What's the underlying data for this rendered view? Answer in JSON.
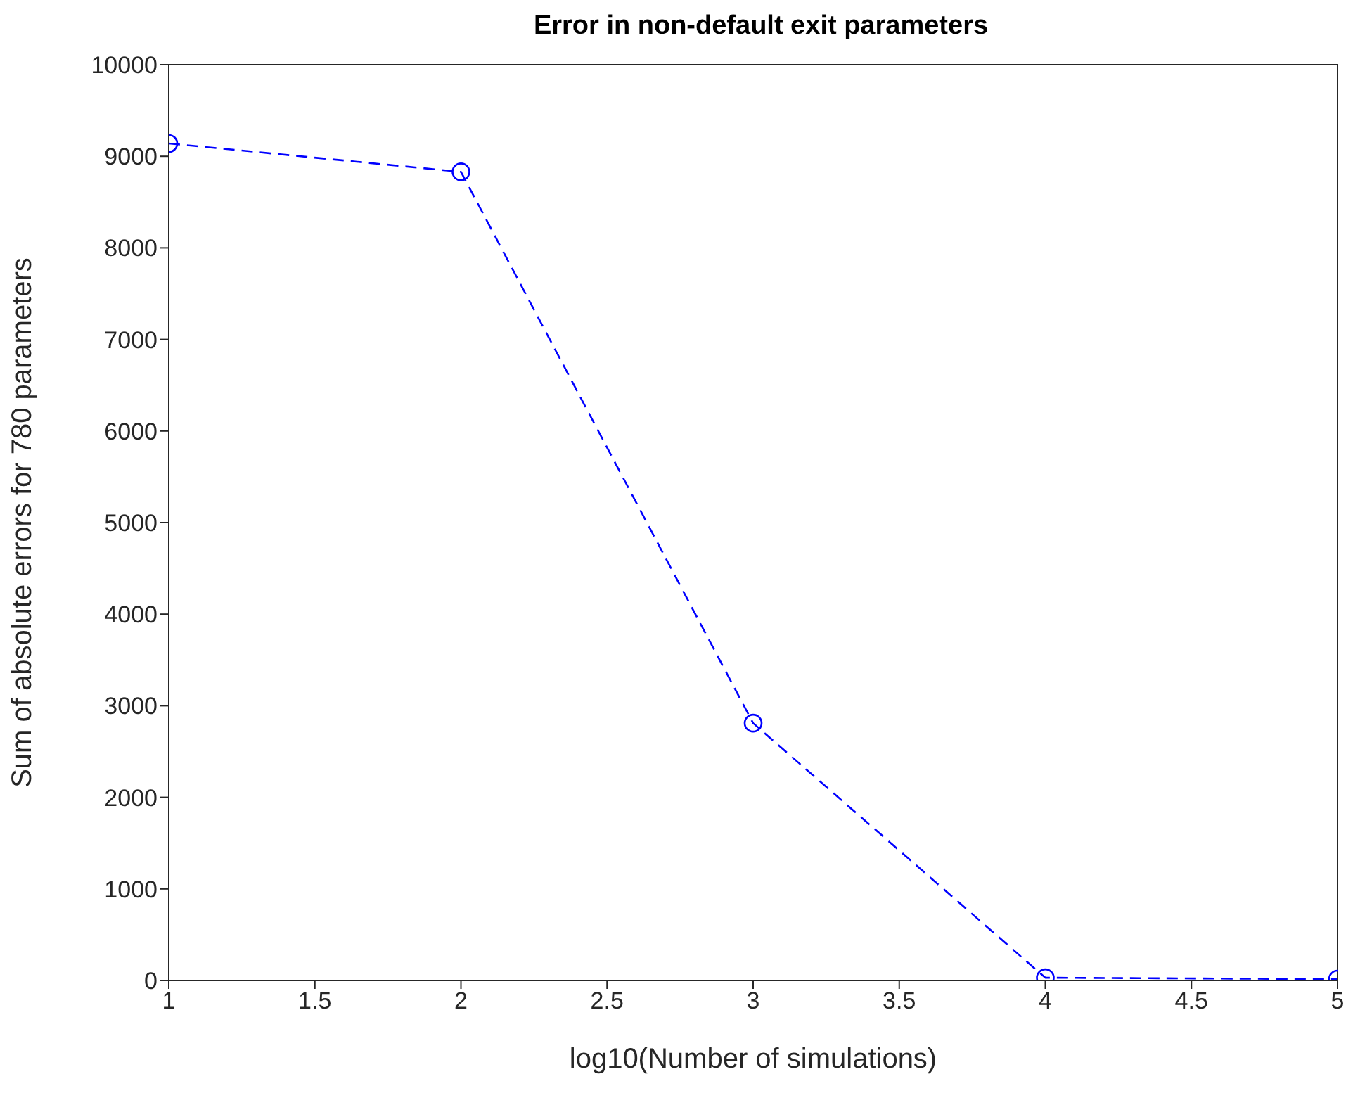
{
  "chart_data": {
    "type": "line",
    "title": "Error in non-default exit parameters",
    "xlabel": "log10(Number of simulations)",
    "ylabel": "Sum of absolute errors for 780 parameters",
    "x": [
      1,
      2,
      3,
      4,
      5
    ],
    "series": [
      {
        "color": "#0000ff",
        "values": [
          9140,
          8830,
          2810,
          30,
          15
        ]
      }
    ],
    "xlim": [
      1,
      5
    ],
    "xticks": [
      1,
      1.5,
      2,
      2.5,
      3,
      3.5,
      4,
      4.5,
      5
    ],
    "ylim": [
      0,
      10000
    ],
    "yticks": [
      0,
      1000,
      2000,
      3000,
      4000,
      5000,
      6000,
      7000,
      8000,
      9000,
      10000
    ],
    "grid": false,
    "legend": false,
    "marker": "circle",
    "line_style": "dashed"
  }
}
